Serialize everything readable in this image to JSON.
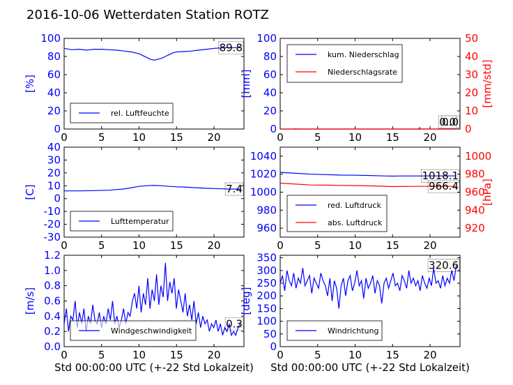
{
  "figure": {
    "title": "2016-10-06 Wetterdaten Station ROTZ"
  },
  "chart_data": [
    {
      "type": "line",
      "panel": "top-left",
      "x": [
        0,
        1,
        2,
        3,
        4,
        5,
        6,
        7,
        8,
        9,
        10,
        10.5,
        11,
        11.5,
        12,
        12.5,
        13,
        13.5,
        14,
        14.5,
        15,
        16,
        17,
        18,
        19,
        20,
        21,
        22,
        23,
        23.5
      ],
      "series": [
        {
          "name": "rel. Luftfeuchte",
          "values": [
            89,
            87.5,
            88,
            87,
            88,
            88,
            87.5,
            87,
            86,
            85,
            83,
            81,
            79,
            77,
            76,
            77,
            78,
            80,
            82,
            84,
            85,
            85.5,
            86,
            87,
            88,
            89,
            89.5,
            89.8,
            89.8,
            89.8
          ],
          "color": "#0000ff"
        }
      ],
      "xlim": [
        0,
        24
      ],
      "ylim": [
        0,
        100
      ],
      "xticks": [
        "0",
        "5",
        "10",
        "15",
        "20"
      ],
      "yticks": [
        "0",
        "20",
        "40",
        "60",
        "80",
        "100"
      ],
      "ylabel": "[%]",
      "legend": "lower-left",
      "annotation": "89.8"
    },
    {
      "type": "line",
      "panel": "top-right",
      "x": [
        0,
        2,
        2.1,
        2.2,
        5,
        10,
        15,
        18.5,
        18.6,
        18.7,
        20,
        23.5
      ],
      "series": [
        {
          "name": "kum. Niederschlag",
          "axis": "left",
          "values": [
            0,
            0,
            0,
            0,
            0,
            0,
            0,
            0,
            0,
            0,
            0,
            0
          ],
          "color": "#0000ff"
        },
        {
          "name": "Niederschlagsrate",
          "axis": "right",
          "values": [
            0,
            0,
            0.3,
            0,
            0,
            0,
            0,
            0,
            0.9,
            0,
            0,
            0
          ],
          "color": "#ff0000"
        }
      ],
      "xlim": [
        0,
        24
      ],
      "ylim": [
        0,
        100
      ],
      "y2lim": [
        0,
        50
      ],
      "xticks": [
        "0",
        "5",
        "10",
        "15",
        "20"
      ],
      "yticks": [
        "0",
        "20",
        "40",
        "60",
        "80",
        "100"
      ],
      "y2ticks": [
        "0",
        "10",
        "20",
        "30",
        "40",
        "50"
      ],
      "ylabel": "[mm]",
      "y2label": "[mm/std]",
      "legend": "upper-left",
      "annotations": [
        "0.0",
        "0.0"
      ]
    },
    {
      "type": "line",
      "panel": "middle-left",
      "x": [
        0,
        2,
        4,
        6,
        7,
        8,
        9,
        10,
        11,
        12,
        13,
        14,
        15,
        16,
        17,
        18,
        19,
        20,
        21,
        22,
        23,
        23.5
      ],
      "series": [
        {
          "name": "Lufttemperatur",
          "values": [
            6,
            6,
            6.2,
            6.5,
            7,
            7.5,
            8.5,
            9.5,
            10,
            10.2,
            10,
            9.5,
            9.2,
            9,
            8.6,
            8.3,
            8,
            7.8,
            7.6,
            7.4,
            7.4,
            7.4
          ],
          "color": "#0000ff"
        }
      ],
      "xlim": [
        0,
        24
      ],
      "ylim": [
        -30,
        40
      ],
      "xticks": [
        "0",
        "5",
        "10",
        "15",
        "20"
      ],
      "yticks": [
        "-30",
        "-20",
        "-10",
        "0",
        "10",
        "20",
        "30",
        "40"
      ],
      "ylabel": "[C]",
      "legend": "lower-left",
      "annotation": "7.4"
    },
    {
      "type": "line",
      "panel": "middle-right",
      "x": [
        0,
        2,
        4,
        6,
        8,
        10,
        12,
        14,
        15,
        16,
        18,
        20,
        22,
        23.5
      ],
      "series": [
        {
          "name": "red. Luftdruck",
          "axis": "left",
          "values": [
            1022,
            1021,
            1020,
            1019.5,
            1019,
            1018.8,
            1018.5,
            1018,
            1017.8,
            1018,
            1018,
            1018.1,
            1018.1,
            1018.1
          ],
          "color": "#0000ff"
        },
        {
          "name": "abs. Luftdruck",
          "axis": "right",
          "values": [
            970,
            969,
            968,
            967.8,
            967.5,
            967.3,
            967,
            966.5,
            966.2,
            966.3,
            966.4,
            966.4,
            966.4,
            966.4
          ],
          "color": "#ff0000"
        }
      ],
      "xlim": [
        0,
        24
      ],
      "ylim": [
        950,
        1050
      ],
      "y2lim": [
        910,
        1010
      ],
      "xticks": [
        "0",
        "5",
        "10",
        "15",
        "20"
      ],
      "yticks": [
        "960",
        "980",
        "1000",
        "1020",
        "1040"
      ],
      "y2ticks": [
        "920",
        "940",
        "960",
        "980",
        "1000"
      ],
      "y2label": "[hPa]",
      "legend": "lower-left",
      "annotations": [
        "1018.1",
        "966.4"
      ]
    },
    {
      "type": "line",
      "panel": "bottom-left",
      "x_start": 0,
      "x_end": 23.5,
      "series": [
        {
          "name": "Windgeschwindigkeit",
          "values": [
            0.3,
            0.5,
            0.2,
            0.4,
            0.35,
            0.6,
            0.25,
            0.45,
            0.3,
            0.5,
            0.2,
            0.4,
            0.3,
            0.55,
            0.35,
            0.3,
            0.45,
            0.25,
            0.4,
            0.3,
            0.5,
            0.35,
            0.6,
            0.3,
            0.4,
            0.25,
            0.35,
            0.5,
            0.3,
            0.45,
            0.4,
            0.6,
            0.7,
            0.5,
            0.8,
            0.45,
            0.7,
            0.55,
            0.9,
            0.5,
            0.75,
            0.6,
            0.95,
            0.55,
            0.8,
            0.65,
            1.1,
            0.6,
            0.85,
            0.7,
            0.9,
            0.5,
            0.75,
            0.6,
            0.45,
            0.7,
            0.4,
            0.55,
            0.35,
            0.6,
            0.3,
            0.45,
            0.25,
            0.4,
            0.3,
            0.35,
            0.2,
            0.3,
            0.25,
            0.35,
            0.2,
            0.3,
            0.15,
            0.25,
            0.2,
            0.3,
            0.15,
            0.2,
            0.15,
            0.25,
            0.3
          ],
          "color": "#0000ff"
        }
      ],
      "xlim": [
        0,
        24
      ],
      "ylim": [
        0,
        1.2
      ],
      "xticks": [
        "0",
        "5",
        "10",
        "15",
        "20"
      ],
      "yticks": [
        "0.0",
        "0.2",
        "0.4",
        "0.6",
        "0.8",
        "1.0",
        "1.2"
      ],
      "xlabel": "Std 00:00:00 UTC (+-22 Std Lokalzeit)",
      "ylabel": "[m/s]",
      "legend": "lower-left",
      "annotation": "0.3"
    },
    {
      "type": "line",
      "panel": "bottom-right",
      "x_start": 0,
      "x_end": 23.5,
      "series": [
        {
          "name": "Windrichtung",
          "values": [
            250,
            280,
            220,
            300,
            260,
            240,
            290,
            230,
            270,
            250,
            310,
            240,
            260,
            280,
            210,
            270,
            250,
            230,
            290,
            260,
            240,
            200,
            270,
            180,
            260,
            230,
            150,
            240,
            270,
            200,
            260,
            280,
            220,
            250,
            300,
            240,
            260,
            190,
            270,
            230,
            250,
            280,
            210,
            260,
            240,
            170,
            250,
            270,
            230,
            260,
            290,
            240,
            250,
            220,
            280,
            260,
            230,
            300,
            250,
            270,
            240,
            260,
            220,
            280,
            250,
            230,
            270,
            240,
            310,
            250,
            260,
            230,
            280,
            240,
            270,
            250,
            300,
            260,
            320
          ],
          "color": "#0000ff"
        }
      ],
      "xlim": [
        0,
        24
      ],
      "ylim": [
        0,
        360
      ],
      "xticks": [
        "0",
        "5",
        "10",
        "15",
        "20"
      ],
      "yticks": [
        "0",
        "50",
        "100",
        "150",
        "200",
        "250",
        "300",
        "350"
      ],
      "xlabel": "Std 00:00:00 UTC (+-22 Std Lokalzeit)",
      "ylabel": "[deg]",
      "legend": "lower-left",
      "annotation": "320.6"
    }
  ]
}
